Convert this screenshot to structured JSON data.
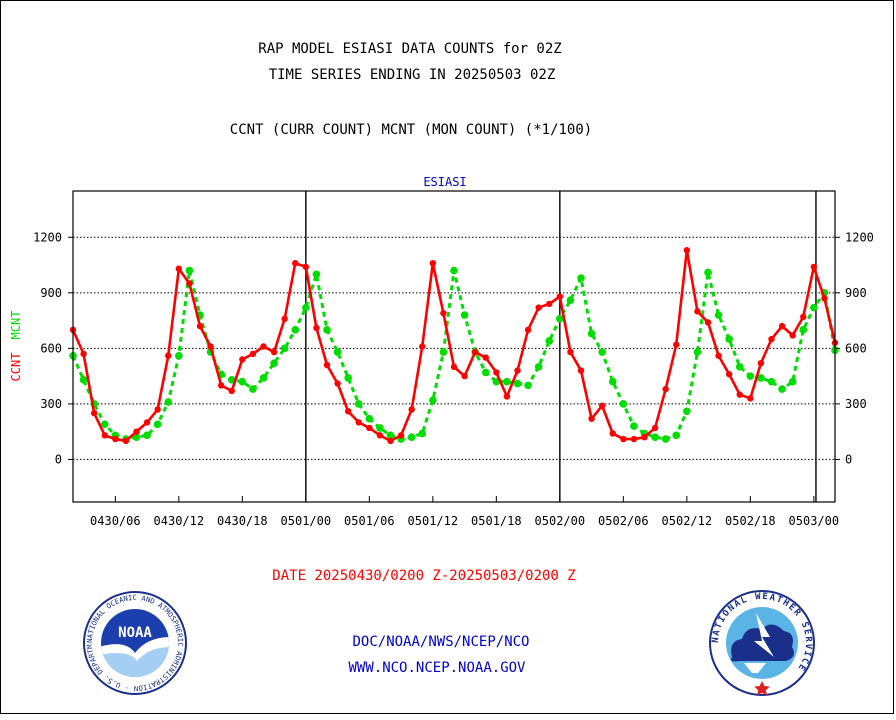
{
  "header": {
    "title_line1": "RAP MODEL ESIASI DATA COUNTS for 02Z",
    "title_line2": "TIME SERIES ENDING IN 20250503 02Z",
    "subtitle": "CCNT (CURR COUNT) MCNT (MON COUNT) (*1/100)"
  },
  "footer": {
    "date_range": "DATE 20250430/0200 Z-20250503/0200 Z",
    "org": "DOC/NOAA/NWS/NCEP/NCO",
    "url": "WWW.NCO.NCEP.NOAA.GOV"
  },
  "logos": {
    "noaa_text": "NOAA",
    "noaa_ring": "NATIONAL OCEANIC AND ATMOSPHERIC ADMINISTRATION · U.S. DEPARTMENT OF COMMERCE ·",
    "nws_ring": "NATIONAL WEATHER SERVICE"
  },
  "colors": {
    "ccnt": "#ff0000",
    "mcnt": "#00dd00",
    "title": "#000000",
    "panel_title": "#0000cc",
    "footer_date": "#ff0000",
    "footer_links": "#0000cc"
  },
  "chart_data": {
    "type": "line",
    "title": "ESIASI",
    "ylabel_series": [
      "CCNT",
      "MCNT"
    ],
    "ylim": [
      -230,
      1450
    ],
    "yticks": [
      0,
      300,
      600,
      900,
      1200
    ],
    "xlim": [
      0,
      72
    ],
    "xticks": [
      {
        "x": 4,
        "label": "0430/06"
      },
      {
        "x": 10,
        "label": "0430/12"
      },
      {
        "x": 16,
        "label": "0430/18"
      },
      {
        "x": 22,
        "label": "0501/00"
      },
      {
        "x": 28,
        "label": "0501/06"
      },
      {
        "x": 34,
        "label": "0501/12"
      },
      {
        "x": 40,
        "label": "0501/18"
      },
      {
        "x": 46,
        "label": "0502/00"
      },
      {
        "x": 52,
        "label": "0502/06"
      },
      {
        "x": 58,
        "label": "0502/12"
      },
      {
        "x": 64,
        "label": "0502/18"
      },
      {
        "x": 70,
        "label": "0503/00"
      }
    ],
    "day_lines": [
      22,
      46,
      70.2
    ],
    "grid": "horizontal dotted",
    "series": [
      {
        "name": "CCNT",
        "values": [
          700,
          570,
          250,
          130,
          110,
          100,
          150,
          200,
          270,
          560,
          1030,
          950,
          720,
          610,
          400,
          370,
          540,
          570,
          610,
          580,
          760,
          1060,
          1040,
          710,
          510,
          410,
          260,
          200,
          170,
          130,
          100,
          130,
          270,
          610,
          1060,
          790,
          500,
          450,
          580,
          550,
          470,
          340,
          480,
          700,
          820,
          840,
          880,
          580,
          480,
          220,
          290,
          140,
          110,
          110,
          120,
          170,
          380,
          620,
          1130,
          800,
          740,
          560,
          460,
          350,
          330,
          520,
          650,
          720,
          670,
          770,
          1040,
          870,
          630
        ]
      },
      {
        "name": "MCNT",
        "values": [
          560,
          430,
          300,
          190,
          130,
          110,
          120,
          130,
          190,
          310,
          560,
          1020,
          780,
          580,
          460,
          430,
          420,
          380,
          440,
          520,
          600,
          700,
          820,
          1000,
          700,
          580,
          440,
          300,
          220,
          170,
          130,
          110,
          120,
          140,
          320,
          580,
          1020,
          780,
          580,
          470,
          420,
          420,
          410,
          400,
          500,
          640,
          760,
          860,
          980,
          680,
          580,
          420,
          300,
          180,
          140,
          120,
          110,
          130,
          260,
          580,
          1010,
          780,
          650,
          500,
          450,
          440,
          420,
          380,
          420,
          700,
          820,
          900,
          590
        ]
      }
    ]
  }
}
